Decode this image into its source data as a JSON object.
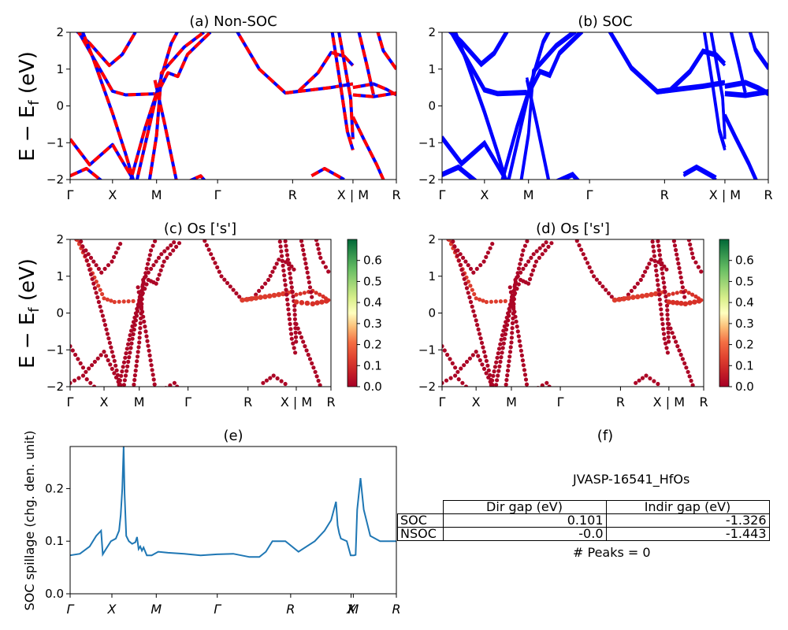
{
  "chart_data": [
    {
      "type": "line",
      "id": "a",
      "title": "(a) Non-SOC",
      "ylabel": "E − E_f (eV)",
      "ylim": [
        -2,
        2
      ],
      "yticks": [
        "2",
        "1",
        "0",
        "−1",
        "−2"
      ],
      "kpath": [
        "Γ",
        "X",
        "M",
        "Γ",
        "R",
        "X | M",
        "R"
      ],
      "colors": {
        "spin_up": "#0000ff",
        "spin_down": "#ff0000"
      }
    },
    {
      "type": "line",
      "id": "b",
      "title": "(b) SOC",
      "ylim": [
        -2,
        2
      ],
      "yticks": [
        "2",
        "1",
        "0",
        "−1",
        "−2"
      ],
      "kpath": [
        "Γ",
        "X",
        "M",
        "Γ",
        "R",
        "X | M",
        "R"
      ],
      "colors": {
        "bands": "#0000ff"
      }
    },
    {
      "type": "scatter",
      "id": "c",
      "title": "(c)  Os ['s']",
      "ylabel": "E − E_f (eV)",
      "ylim": [
        -2,
        2
      ],
      "yticks": [
        "2",
        "1",
        "0",
        "−1",
        "−2"
      ],
      "kpath": [
        "Γ",
        "X",
        "M",
        "Γ",
        "R",
        "X | M",
        "R"
      ],
      "colorbar": {
        "ticks": [
          "0.6",
          "0.5",
          "0.4",
          "0.3",
          "0.2",
          "0.1",
          "0.0"
        ],
        "cmap": "RdYlGn"
      }
    },
    {
      "type": "scatter",
      "id": "d",
      "title": "(d) Os ['s']",
      "ylim": [
        -2,
        2
      ],
      "yticks": [
        "2",
        "1",
        "0",
        "−1",
        "−2"
      ],
      "kpath": [
        "Γ",
        "X",
        "M",
        "Γ",
        "R",
        "X | M",
        "R"
      ],
      "colorbar": {
        "ticks": [
          "0.6",
          "0.5",
          "0.4",
          "0.3",
          "0.2",
          "0.1",
          "0.0"
        ],
        "cmap": "RdYlGn"
      }
    },
    {
      "type": "line",
      "id": "e",
      "title": "(e)",
      "ylabel": "SOC spillage (chg. den. unit)",
      "ylim": [
        0,
        0.28
      ],
      "yticks": [
        "0.2",
        "0.1",
        "0.0"
      ],
      "kpath": [
        "Γ",
        "X",
        "M",
        "Γ",
        "R",
        "X",
        "M",
        "R"
      ],
      "series": [
        {
          "x": [
            0,
            0.03,
            0.06,
            0.08,
            0.095,
            0.1,
            0.11,
            0.125,
            0.14,
            0.15,
            0.155,
            0.16,
            0.164,
            0.167,
            0.172,
            0.18,
            0.19,
            0.2,
            0.205,
            0.21,
            0.215,
            0.22,
            0.225,
            0.235,
            0.25,
            0.27,
            0.3,
            0.35,
            0.4,
            0.45,
            0.5,
            0.55,
            0.58,
            0.6,
            0.62,
            0.66,
            0.7,
            0.75,
            0.78,
            0.8,
            0.815,
            0.82,
            0.825,
            0.83,
            0.848,
            0.86,
            0.87,
            0.875,
            0.88,
            0.89,
            0.9,
            0.92,
            0.95,
            1.0
          ],
          "values": [
            0.073,
            0.076,
            0.09,
            0.11,
            0.12,
            0.075,
            0.085,
            0.1,
            0.105,
            0.12,
            0.15,
            0.2,
            0.28,
            0.19,
            0.11,
            0.1,
            0.095,
            0.098,
            0.108,
            0.085,
            0.09,
            0.082,
            0.088,
            0.073,
            0.073,
            0.08,
            0.078,
            0.076,
            0.073,
            0.075,
            0.076,
            0.07,
            0.07,
            0.08,
            0.1,
            0.1,
            0.08,
            0.1,
            0.12,
            0.14,
            0.175,
            0.13,
            0.115,
            0.105,
            0.1,
            0.073,
            0.073,
            0.074,
            0.16,
            0.22,
            0.16,
            0.11,
            0.1,
            0.1
          ]
        }
      ],
      "color": "#1f77b4"
    }
  ],
  "panel_f": {
    "title": "(f)",
    "material": "JVASP-16541_HfOs",
    "table": {
      "headers": [
        "",
        "Dir gap (eV)",
        "Indir gap (eV)"
      ],
      "rows": [
        {
          "label": "SOC",
          "dir": "0.101",
          "indir": "-1.326"
        },
        {
          "label": "NSOC",
          "dir": "-0.0",
          "indir": "-1.443"
        }
      ]
    },
    "peaks": "# Peaks = 0"
  }
}
